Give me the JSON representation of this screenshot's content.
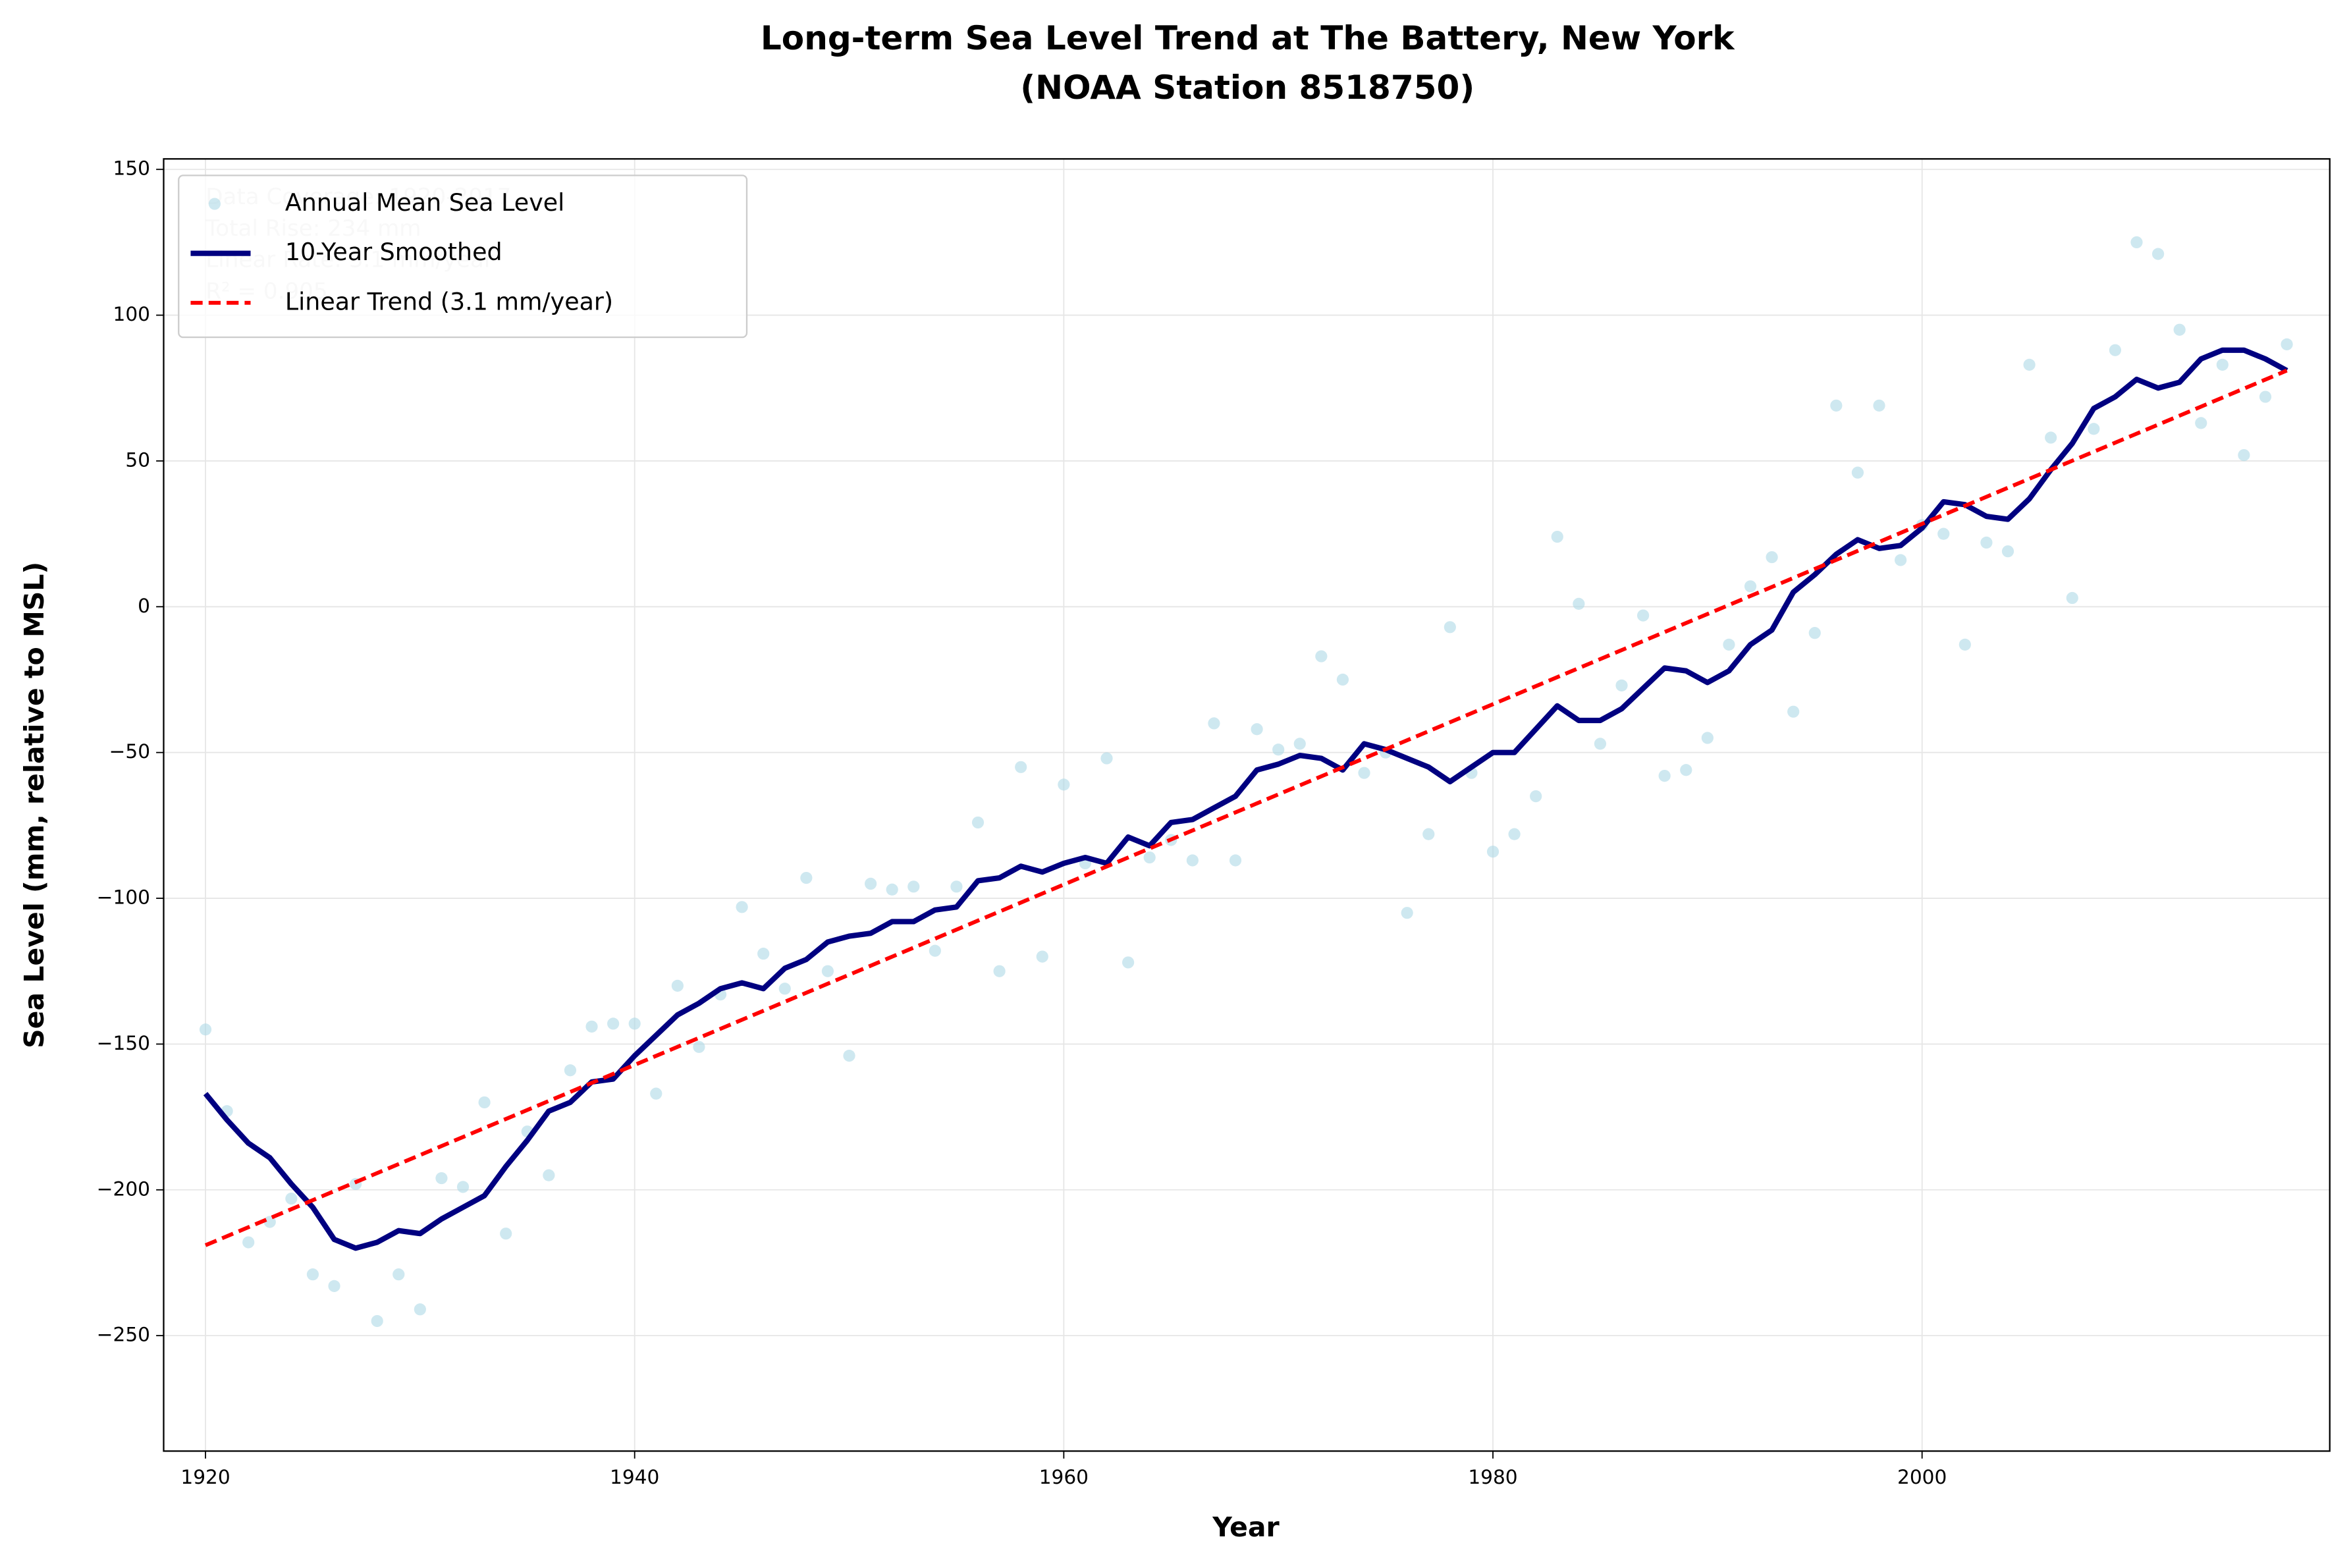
{
  "chart_data": {
    "type": "line",
    "title": "Long-term Sea Level Trend at The Battery, New York",
    "subtitle": "(NOAA Station 8518750)",
    "x_label": "Year",
    "y_label": "Sea Level (mm, relative to MSL)",
    "annotation": [
      "Data Coverage: 1920-2017",
      "Total Rise: 234 mm",
      "Linear Rate: 3.1 mm/year",
      "R² = 0.905"
    ],
    "legend": "upper left",
    "grid": true,
    "xlim": [
      1918.05,
      2019.0
    ],
    "ylim": [
      -289.6,
      153.6
    ],
    "xticks": [
      1920,
      1940,
      1960,
      1980,
      2000
    ],
    "yticks": [
      {
        "value": -250,
        "label": "−250"
      },
      {
        "value": -200,
        "label": "−200"
      },
      {
        "value": -150,
        "label": "−150"
      },
      {
        "value": -100,
        "label": "−100"
      },
      {
        "value": -50,
        "label": "−50"
      },
      0,
      50,
      100,
      150
    ],
    "x": [
      1920,
      1921,
      1922,
      1923,
      1924,
      1925,
      1926,
      1927,
      1928,
      1929,
      1930,
      1931,
      1932,
      1933,
      1934,
      1935,
      1936,
      1937,
      1938,
      1939,
      1940,
      1941,
      1942,
      1943,
      1944,
      1945,
      1946,
      1947,
      1948,
      1949,
      1950,
      1951,
      1952,
      1953,
      1954,
      1955,
      1956,
      1957,
      1958,
      1959,
      1960,
      1961,
      1962,
      1963,
      1964,
      1965,
      1966,
      1967,
      1968,
      1969,
      1970,
      1971,
      1972,
      1973,
      1974,
      1975,
      1976,
      1977,
      1978,
      1979,
      1980,
      1981,
      1982,
      1983,
      1984,
      1985,
      1986,
      1987,
      1988,
      1989,
      1990,
      1991,
      1992,
      1993,
      1994,
      1995,
      1996,
      1997,
      1998,
      1999,
      2000,
      2001,
      2002,
      2003,
      2004,
      2005,
      2006,
      2007,
      2008,
      2009,
      2010,
      2011,
      2012,
      2013,
      2014,
      2015,
      2016,
      2017
    ],
    "series": [
      {
        "name": "Annual Mean Sea Level",
        "color": "#add8e6",
        "style": "scatter",
        "values": [
          -145,
          -173,
          -218,
          -211,
          -203,
          -229,
          -233,
          -198,
          -245,
          -229,
          -241,
          -196,
          -199,
          -170,
          -215,
          -180,
          -195,
          -159,
          -144,
          -143,
          -143,
          -167,
          -130,
          -151,
          -133,
          -103,
          -119,
          -131,
          -93,
          -125,
          -154,
          -95,
          -97,
          -96,
          -118,
          -96,
          -74,
          -125,
          -55,
          -120,
          -61,
          -88,
          -52,
          -122,
          -86,
          -80,
          -87,
          -40,
          -87,
          -42,
          -49,
          -47,
          -17,
          -25,
          -57,
          -50,
          -105,
          -78,
          -7,
          -57,
          -84,
          -78,
          -65,
          24,
          1,
          -47,
          -27,
          -3,
          -58,
          -56,
          -45,
          -13,
          7,
          17,
          -36,
          -9,
          69,
          46,
          69,
          16,
          28,
          25,
          -13,
          22,
          19,
          83,
          58,
          3,
          61,
          88,
          125,
          121,
          95,
          63,
          83,
          52,
          72,
          90
        ]
      },
      {
        "name": "10-Year Smoothed",
        "color": "#000080",
        "style": "solid",
        "values": [
          -167,
          -176,
          -184,
          -189,
          -198,
          -206,
          -217,
          -220,
          -218,
          -214,
          -215,
          -210,
          -206,
          -202,
          -192,
          -183,
          -173,
          -170,
          -163,
          -162,
          -154,
          -147,
          -140,
          -136,
          -131,
          -129,
          -131,
          -124,
          -121,
          -115,
          -113,
          -112,
          -108,
          -108,
          -104,
          -103,
          -94,
          -93,
          -89,
          -91,
          -88,
          -86,
          -88,
          -79,
          -82,
          -74,
          -73,
          -69,
          -65,
          -56,
          -54,
          -51,
          -52,
          -56,
          -47,
          -49,
          -52,
          -55,
          -60,
          -55,
          -50,
          -50,
          -42,
          -34,
          -39,
          -39,
          -35,
          -28,
          -21,
          -22,
          -26,
          -22,
          -13,
          -8,
          5,
          11,
          18,
          23,
          20,
          21,
          27,
          36,
          35,
          31,
          30,
          37,
          47,
          56,
          68,
          72,
          78,
          75,
          77,
          85,
          88,
          88,
          85,
          81
        ]
      },
      {
        "name": "Linear Trend (3.1 mm/year)",
        "color": "#ff0000",
        "style": "dashed",
        "x": [
          1920,
          2017
        ],
        "values": [
          -219,
          81
        ]
      }
    ]
  }
}
